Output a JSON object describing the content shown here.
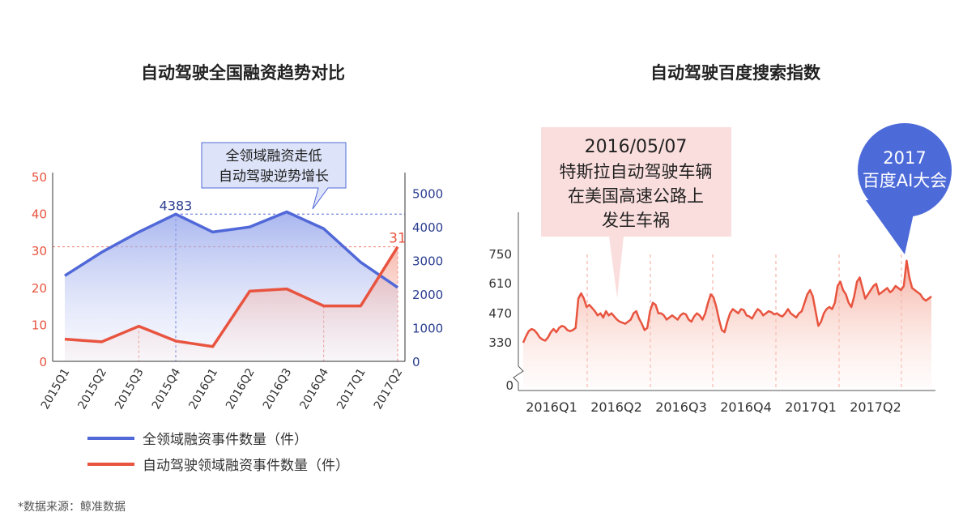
{
  "source": "*数据来源：鲸准数据",
  "colors": {
    "blue": "#5068d8",
    "red": "#e8543f",
    "blue_fill": "#c5cdf4",
    "red_fill": "#f8c4b9",
    "callout_blue_bg": "#dde3f8",
    "callout_pink_bg": "#fadedd",
    "bubble": "#4d6ad9",
    "axis_red": "#e8543f",
    "axis_blue": "#2a3d8f"
  },
  "chart_data": [
    {
      "type": "line",
      "title": "自动驾驶全国融资趋势对比",
      "categories": [
        "2015Q1",
        "2015Q2",
        "2015Q3",
        "2015Q4",
        "2016Q1",
        "2016Q2",
        "2016Q3",
        "2016Q4",
        "2017Q1",
        "2017Q2"
      ],
      "series": [
        {
          "name": "全领域融资事件数量（件）",
          "axis": "right",
          "values": [
            2550,
            3250,
            3850,
            4383,
            3850,
            4000,
            4450,
            3950,
            2950,
            2200
          ]
        },
        {
          "name": "自动驾驶领域融资事件数量（件）",
          "axis": "left",
          "values": [
            6,
            5.3,
            9.5,
            5.5,
            4,
            19,
            19.6,
            15,
            15,
            31
          ]
        }
      ],
      "ylim_left": [
        0,
        50
      ],
      "yticks_left": [
        "0",
        "10",
        "20",
        "30",
        "40",
        "50"
      ],
      "ylim_right": [
        0,
        5500
      ],
      "yticks_right": [
        "0",
        "1000",
        "2000",
        "3000",
        "4000",
        "5000"
      ],
      "labels": {
        "peak_blue": "4383",
        "end_red": "31"
      },
      "annotation": [
        "全领域融资走低",
        "自动驾驶逆势增长"
      ],
      "legend": "bottom"
    },
    {
      "type": "area",
      "title": "自动驾驶百度搜索指数",
      "x_ticks": [
        "2016Q1",
        "2016Q2",
        "2016Q3",
        "2016Q4",
        "2017Q1",
        "2017Q2"
      ],
      "y_ticks": [
        "0",
        "330",
        "470",
        "610",
        "750"
      ],
      "y_break": true,
      "values": [
        330,
        360,
        385,
        395,
        390,
        375,
        355,
        345,
        340,
        355,
        380,
        395,
        380,
        400,
        410,
        405,
        390,
        385,
        390,
        400,
        540,
        565,
        540,
        500,
        510,
        495,
        480,
        460,
        470,
        450,
        480,
        460,
        470,
        455,
        440,
        430,
        425,
        420,
        430,
        440,
        470,
        480,
        445,
        420,
        390,
        400,
        480,
        520,
        510,
        470,
        470,
        460,
        440,
        450,
        460,
        450,
        440,
        460,
        470,
        465,
        440,
        430,
        455,
        470,
        460,
        440,
        470,
        520,
        560,
        545,
        500,
        440,
        390,
        380,
        430,
        470,
        490,
        480,
        470,
        490,
        485,
        460,
        455,
        445,
        470,
        490,
        480,
        460,
        470,
        480,
        475,
        465,
        470,
        460,
        455,
        470,
        490,
        470,
        460,
        450,
        470,
        480,
        520,
        560,
        580,
        550,
        480,
        410,
        430,
        470,
        490,
        500,
        490,
        520,
        600,
        620,
        580,
        560,
        520,
        500,
        550,
        620,
        640,
        590,
        540,
        560,
        580,
        600,
        610,
        560,
        570,
        580,
        590,
        570,
        580,
        600,
        590,
        580,
        600,
        720,
        640,
        590,
        580,
        570,
        560,
        540,
        530,
        540,
        550
      ],
      "annotation_date": "2016/05/07",
      "annotation_lines": [
        "特斯拉自动驾驶车辆",
        "在美国高速公路上",
        "发生车祸"
      ],
      "bubble": [
        "2017",
        "百度AI大会"
      ]
    }
  ]
}
